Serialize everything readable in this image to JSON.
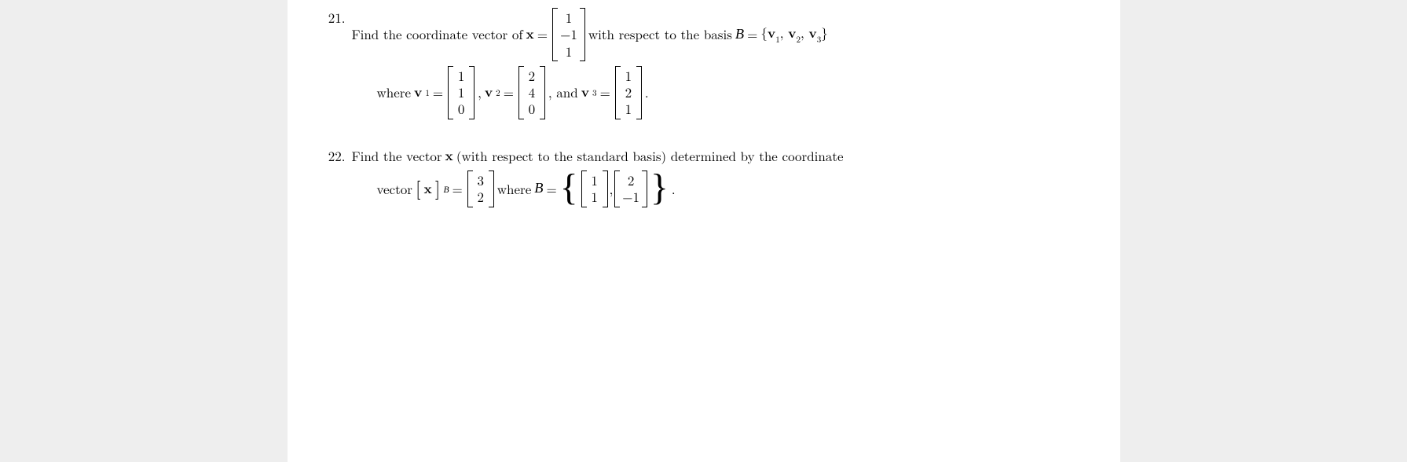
{
  "problems": [
    {
      "number": "21.",
      "line1": {
        "pre": "Find the coordinate vector of ",
        "x_label": "x",
        "equals": " = ",
        "x_vec": [
          "1",
          "−1",
          "1"
        ],
        "mid": " with respect to the basis ",
        "B_label": "B",
        "eq2": " = ",
        "basis_set": "{",
        "basis_elems": [
          "v",
          "v",
          "v"
        ],
        "basis_subs": [
          "1",
          "2",
          "3"
        ],
        "basis_close": "}"
      },
      "line2": {
        "pre": "where ",
        "v1_label": "v",
        "v1_sub": "1",
        "eq": " = ",
        "v1_vec": [
          "1",
          "1",
          "0"
        ],
        "comma1": ", ",
        "v2_label": "v",
        "v2_sub": "2",
        "v2_vec": [
          "2",
          "4",
          "0"
        ],
        "comma2": ", and ",
        "v3_label": "v",
        "v3_sub": "3",
        "v3_vec": [
          "1",
          "2",
          "1"
        ],
        "period": "."
      }
    },
    {
      "number": "22.",
      "line1": {
        "pre": "Find the vector ",
        "x_label": "x",
        "post": " (with respect to the standard basis) determined by the coordinate"
      },
      "line2": {
        "pre": "vector ",
        "lb": "[",
        "x_label": "x",
        "rb": "]",
        "sub_B": "B",
        "eq": " = ",
        "coord_vec": [
          "3",
          "2"
        ],
        "where": " where ",
        "B_label": "B",
        "eq2": " = ",
        "b1_vec": [
          "1",
          "1"
        ],
        "comma": " , ",
        "b2_vec": [
          "2",
          "−1"
        ],
        "period": "."
      }
    }
  ],
  "colors": {
    "page_bg": "#ffffff",
    "outer_bg": "#eeeeee",
    "text": "#000000"
  }
}
